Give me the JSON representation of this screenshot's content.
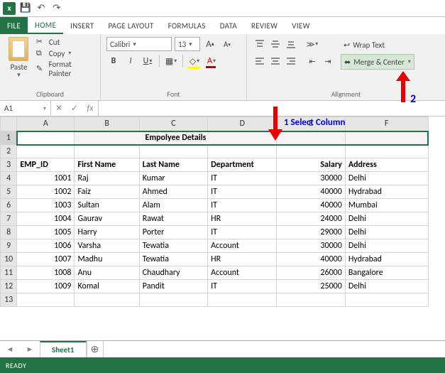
{
  "qat": {
    "app_logo_text": "X▮"
  },
  "tabs": {
    "file": "FILE",
    "items": [
      "HOME",
      "INSERT",
      "PAGE LAYOUT",
      "FORMULAS",
      "DATA",
      "REVIEW",
      "VIEW"
    ],
    "active_index": 0
  },
  "ribbon": {
    "clipboard": {
      "paste": "Paste",
      "cut": "Cut",
      "copy": "Copy",
      "fmt": "Format Painter",
      "label": "Clipboard"
    },
    "font": {
      "name": "Calibri",
      "size": "13",
      "bold": "B",
      "italic": "I",
      "underline": "U",
      "inc": "A",
      "dec": "A",
      "label": "Font"
    },
    "alignment": {
      "wrap": "Wrap Text",
      "merge": "Merge & Center",
      "label": "Alignment"
    }
  },
  "namebox": "A1",
  "annotations": {
    "a1": "1  Select Column",
    "a2": "2"
  },
  "sheet": {
    "columns": [
      "A",
      "B",
      "C",
      "D",
      "E",
      "F"
    ],
    "title_row_merged": "Empolyee Details",
    "headers": [
      "EMP_ID",
      "First Name",
      "Last Name",
      "Department",
      "Salary",
      "Address"
    ],
    "rows": [
      {
        "id": "1001",
        "fn": "Raj",
        "ln": "Kumar",
        "dept": "IT",
        "sal": "30000",
        "addr": "Delhi"
      },
      {
        "id": "1002",
        "fn": "Faiz",
        "ln": "Ahmed",
        "dept": "IT",
        "sal": "40000",
        "addr": "Hydrabad"
      },
      {
        "id": "1003",
        "fn": "Sultan",
        "ln": "Alam",
        "dept": "IT",
        "sal": "40000",
        "addr": "Mumbai"
      },
      {
        "id": "1004",
        "fn": "Gaurav",
        "ln": "Rawat",
        "dept": "HR",
        "sal": "24000",
        "addr": "Delhi"
      },
      {
        "id": "1005",
        "fn": "Harry",
        "ln": "Porter",
        "dept": "IT",
        "sal": "29000",
        "addr": "Delhi"
      },
      {
        "id": "1006",
        "fn": "Varsha",
        "ln": "Tewatia",
        "dept": "Account",
        "sal": "30000",
        "addr": "Delhi"
      },
      {
        "id": "1007",
        "fn": "Madhu",
        "ln": "Tewatia",
        "dept": "HR",
        "sal": "40000",
        "addr": "Hydrabad"
      },
      {
        "id": "1008",
        "fn": "Anu",
        "ln": "Chaudhary",
        "dept": "Account",
        "sal": "26000",
        "addr": "Bangalore"
      },
      {
        "id": "1009",
        "fn": "Komal",
        "ln": "Pandit",
        "dept": "IT",
        "sal": "25000",
        "addr": "Delhi"
      }
    ],
    "tab_name": "Sheet1"
  },
  "status": "READY",
  "colors": {
    "excel_green": "#217346",
    "annotation_blue": "#0000e6",
    "arrow_red": "#e60000"
  }
}
